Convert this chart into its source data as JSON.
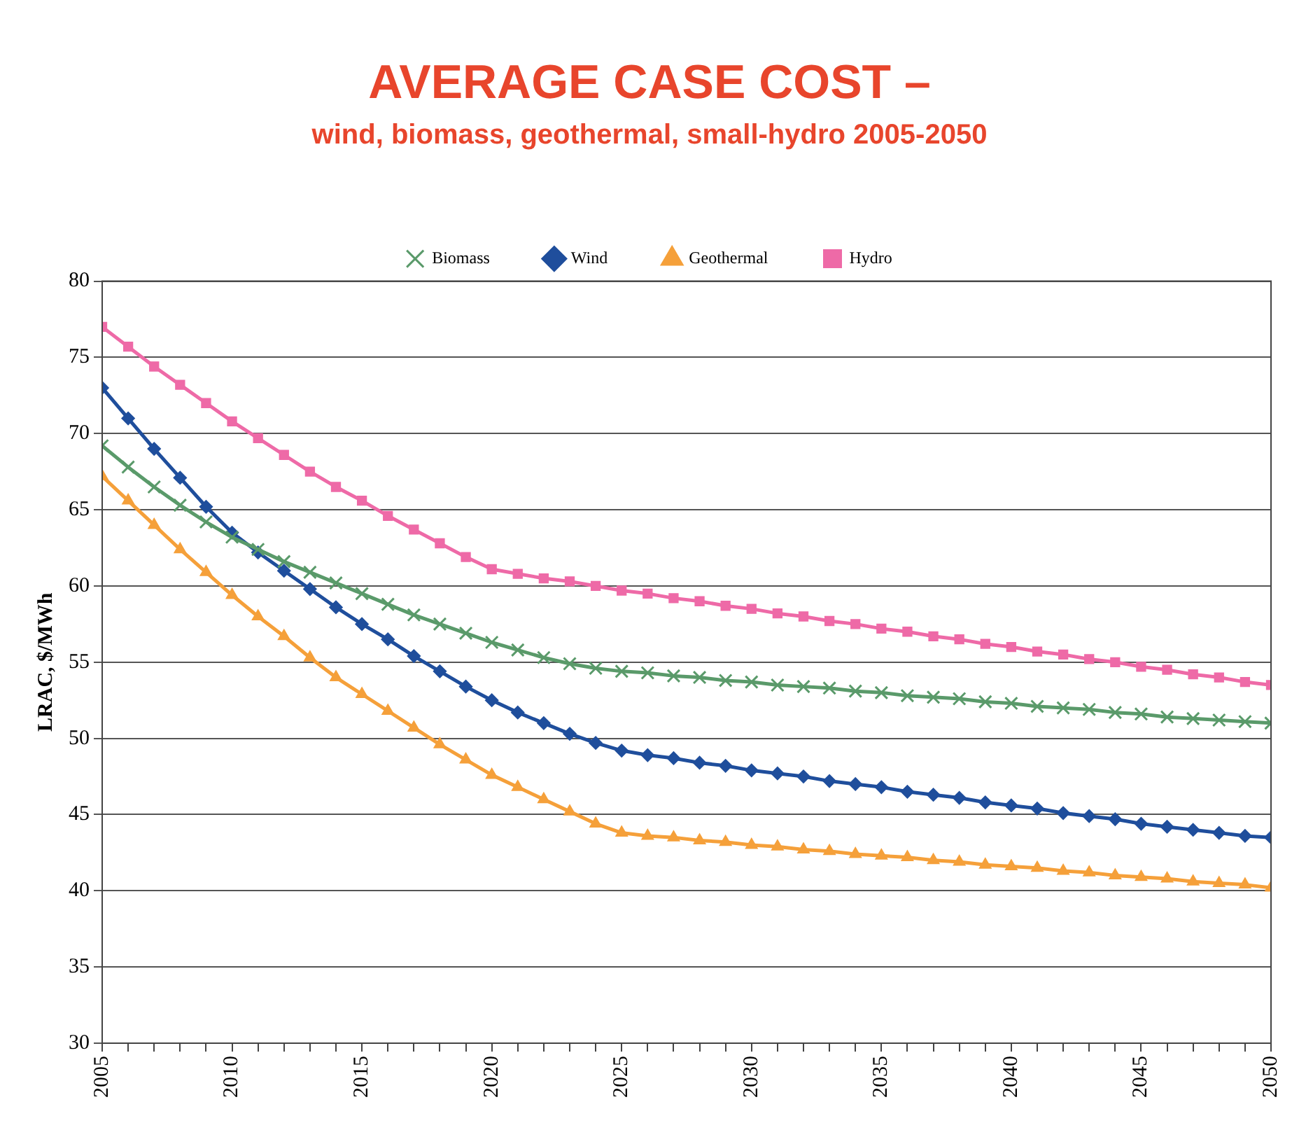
{
  "chart_data": {
    "type": "line",
    "title": "AVERAGE CASE COST –",
    "subtitle": "wind, biomass, geothermal, small-hydro 2005-2050",
    "ylabel": "LRAC, $/MWh",
    "x": [
      2005,
      2006,
      2007,
      2008,
      2009,
      2010,
      2011,
      2012,
      2013,
      2014,
      2015,
      2016,
      2017,
      2018,
      2019,
      2020,
      2021,
      2022,
      2023,
      2024,
      2025,
      2026,
      2027,
      2028,
      2029,
      2030,
      2031,
      2032,
      2033,
      2034,
      2035,
      2036,
      2037,
      2038,
      2039,
      2040,
      2041,
      2042,
      2043,
      2044,
      2045,
      2046,
      2047,
      2048,
      2049,
      2050
    ],
    "series": [
      {
        "name": "Wind",
        "color": "#1f4e9c",
        "marker": "diamond",
        "values": [
          73,
          71,
          69,
          67.1,
          65.2,
          63.5,
          62.2,
          61.0,
          59.8,
          58.6,
          57.5,
          56.5,
          55.4,
          54.4,
          53.4,
          52.5,
          51.7,
          51.0,
          50.3,
          49.7,
          49.2,
          48.9,
          48.7,
          48.4,
          48.2,
          47.9,
          47.7,
          47.5,
          47.2,
          47.0,
          46.8,
          46.5,
          46.3,
          46.1,
          45.8,
          45.6,
          45.4,
          45.1,
          44.9,
          44.7,
          44.4,
          44.2,
          44.0,
          43.8,
          43.6,
          43.5
        ]
      },
      {
        "name": "Biomass",
        "color": "#5a9a6a",
        "marker": "cross",
        "values": [
          69.2,
          67.8,
          66.5,
          65.3,
          64.2,
          63.2,
          62.4,
          61.6,
          60.9,
          60.2,
          59.5,
          58.8,
          58.1,
          57.5,
          56.9,
          56.3,
          55.8,
          55.3,
          54.9,
          54.6,
          54.4,
          54.3,
          54.1,
          54.0,
          53.8,
          53.7,
          53.5,
          53.4,
          53.3,
          53.1,
          53.0,
          52.8,
          52.7,
          52.6,
          52.4,
          52.3,
          52.1,
          52.0,
          51.9,
          51.7,
          51.6,
          51.4,
          51.3,
          51.2,
          51.1,
          51.0
        ]
      },
      {
        "name": "Geothermal",
        "color": "#f5a03a",
        "marker": "triangle",
        "values": [
          67.2,
          65.6,
          64,
          62.4,
          60.9,
          59.4,
          58.0,
          56.7,
          55.3,
          54.0,
          52.9,
          51.8,
          50.7,
          49.6,
          48.6,
          47.6,
          46.8,
          46.0,
          45.2,
          44.4,
          43.8,
          43.6,
          43.5,
          43.3,
          43.2,
          43.0,
          42.9,
          42.7,
          42.6,
          42.4,
          42.3,
          42.2,
          42.0,
          41.9,
          41.7,
          41.6,
          41.5,
          41.3,
          41.2,
          41.0,
          40.9,
          40.8,
          40.6,
          40.5,
          40.4,
          40.2
        ]
      },
      {
        "name": "Hydro",
        "color": "#ee6aa7",
        "marker": "square",
        "values": [
          77,
          75.7,
          74.4,
          73.2,
          72,
          70.8,
          69.7,
          68.6,
          67.5,
          66.5,
          65.6,
          64.6,
          63.7,
          62.8,
          61.9,
          61.1,
          60.8,
          60.5,
          60.3,
          60.0,
          59.7,
          59.5,
          59.2,
          59.0,
          58.7,
          58.5,
          58.2,
          58.0,
          57.7,
          57.5,
          57.2,
          57.0,
          56.7,
          56.5,
          56.2,
          56.0,
          55.7,
          55.5,
          55.2,
          55.0,
          54.7,
          54.5,
          54.2,
          54.0,
          53.7,
          53.5
        ]
      }
    ],
    "xlim": [
      2005,
      2050
    ],
    "xticks": [
      2005,
      {
        "value": 2006,
        "label": null
      },
      {
        "value": 2007,
        "label": null
      },
      {
        "value": 2008,
        "label": null
      },
      {
        "value": 2009,
        "label": null
      },
      2010,
      {
        "value": 2011,
        "label": null
      },
      {
        "value": 2012,
        "label": null
      },
      {
        "value": 2013,
        "label": null
      },
      {
        "value": 2014,
        "label": null
      },
      2015,
      {
        "value": 2016,
        "label": null
      },
      {
        "value": 2017,
        "label": null
      },
      {
        "value": 2018,
        "label": null
      },
      {
        "value": 2019,
        "label": null
      },
      2020,
      {
        "value": 2021,
        "label": null
      },
      {
        "value": 2022,
        "label": null
      },
      {
        "value": 2023,
        "label": null
      },
      {
        "value": 2024,
        "label": null
      },
      2025,
      {
        "value": 2026,
        "label": null
      },
      {
        "value": 2027,
        "label": null
      },
      {
        "value": 2028,
        "label": null
      },
      {
        "value": 2029,
        "label": null
      },
      2030,
      {
        "value": 2031,
        "label": null
      },
      {
        "value": 2032,
        "label": null
      },
      {
        "value": 2033,
        "label": null
      },
      {
        "value": 2034,
        "label": null
      },
      2035,
      {
        "value": 2036,
        "label": null
      },
      {
        "value": 2037,
        "label": null
      },
      {
        "value": 2038,
        "label": null
      },
      {
        "value": 2039,
        "label": null
      },
      2040,
      {
        "value": 2041,
        "label": null
      },
      {
        "value": 2042,
        "label": null
      },
      {
        "value": 2043,
        "label": null
      },
      {
        "value": 2044,
        "label": null
      },
      2045,
      {
        "value": 2046,
        "label": null
      },
      {
        "value": 2047,
        "label": null
      },
      {
        "value": 2048,
        "label": null
      },
      {
        "value": 2049,
        "label": null
      },
      2050
    ],
    "ylim": [
      30,
      80
    ],
    "yticks": [
      30,
      35,
      40,
      45,
      50,
      55,
      60,
      65,
      70,
      75,
      80
    ],
    "grid": "y",
    "legend": "top",
    "line_style": "solid"
  }
}
